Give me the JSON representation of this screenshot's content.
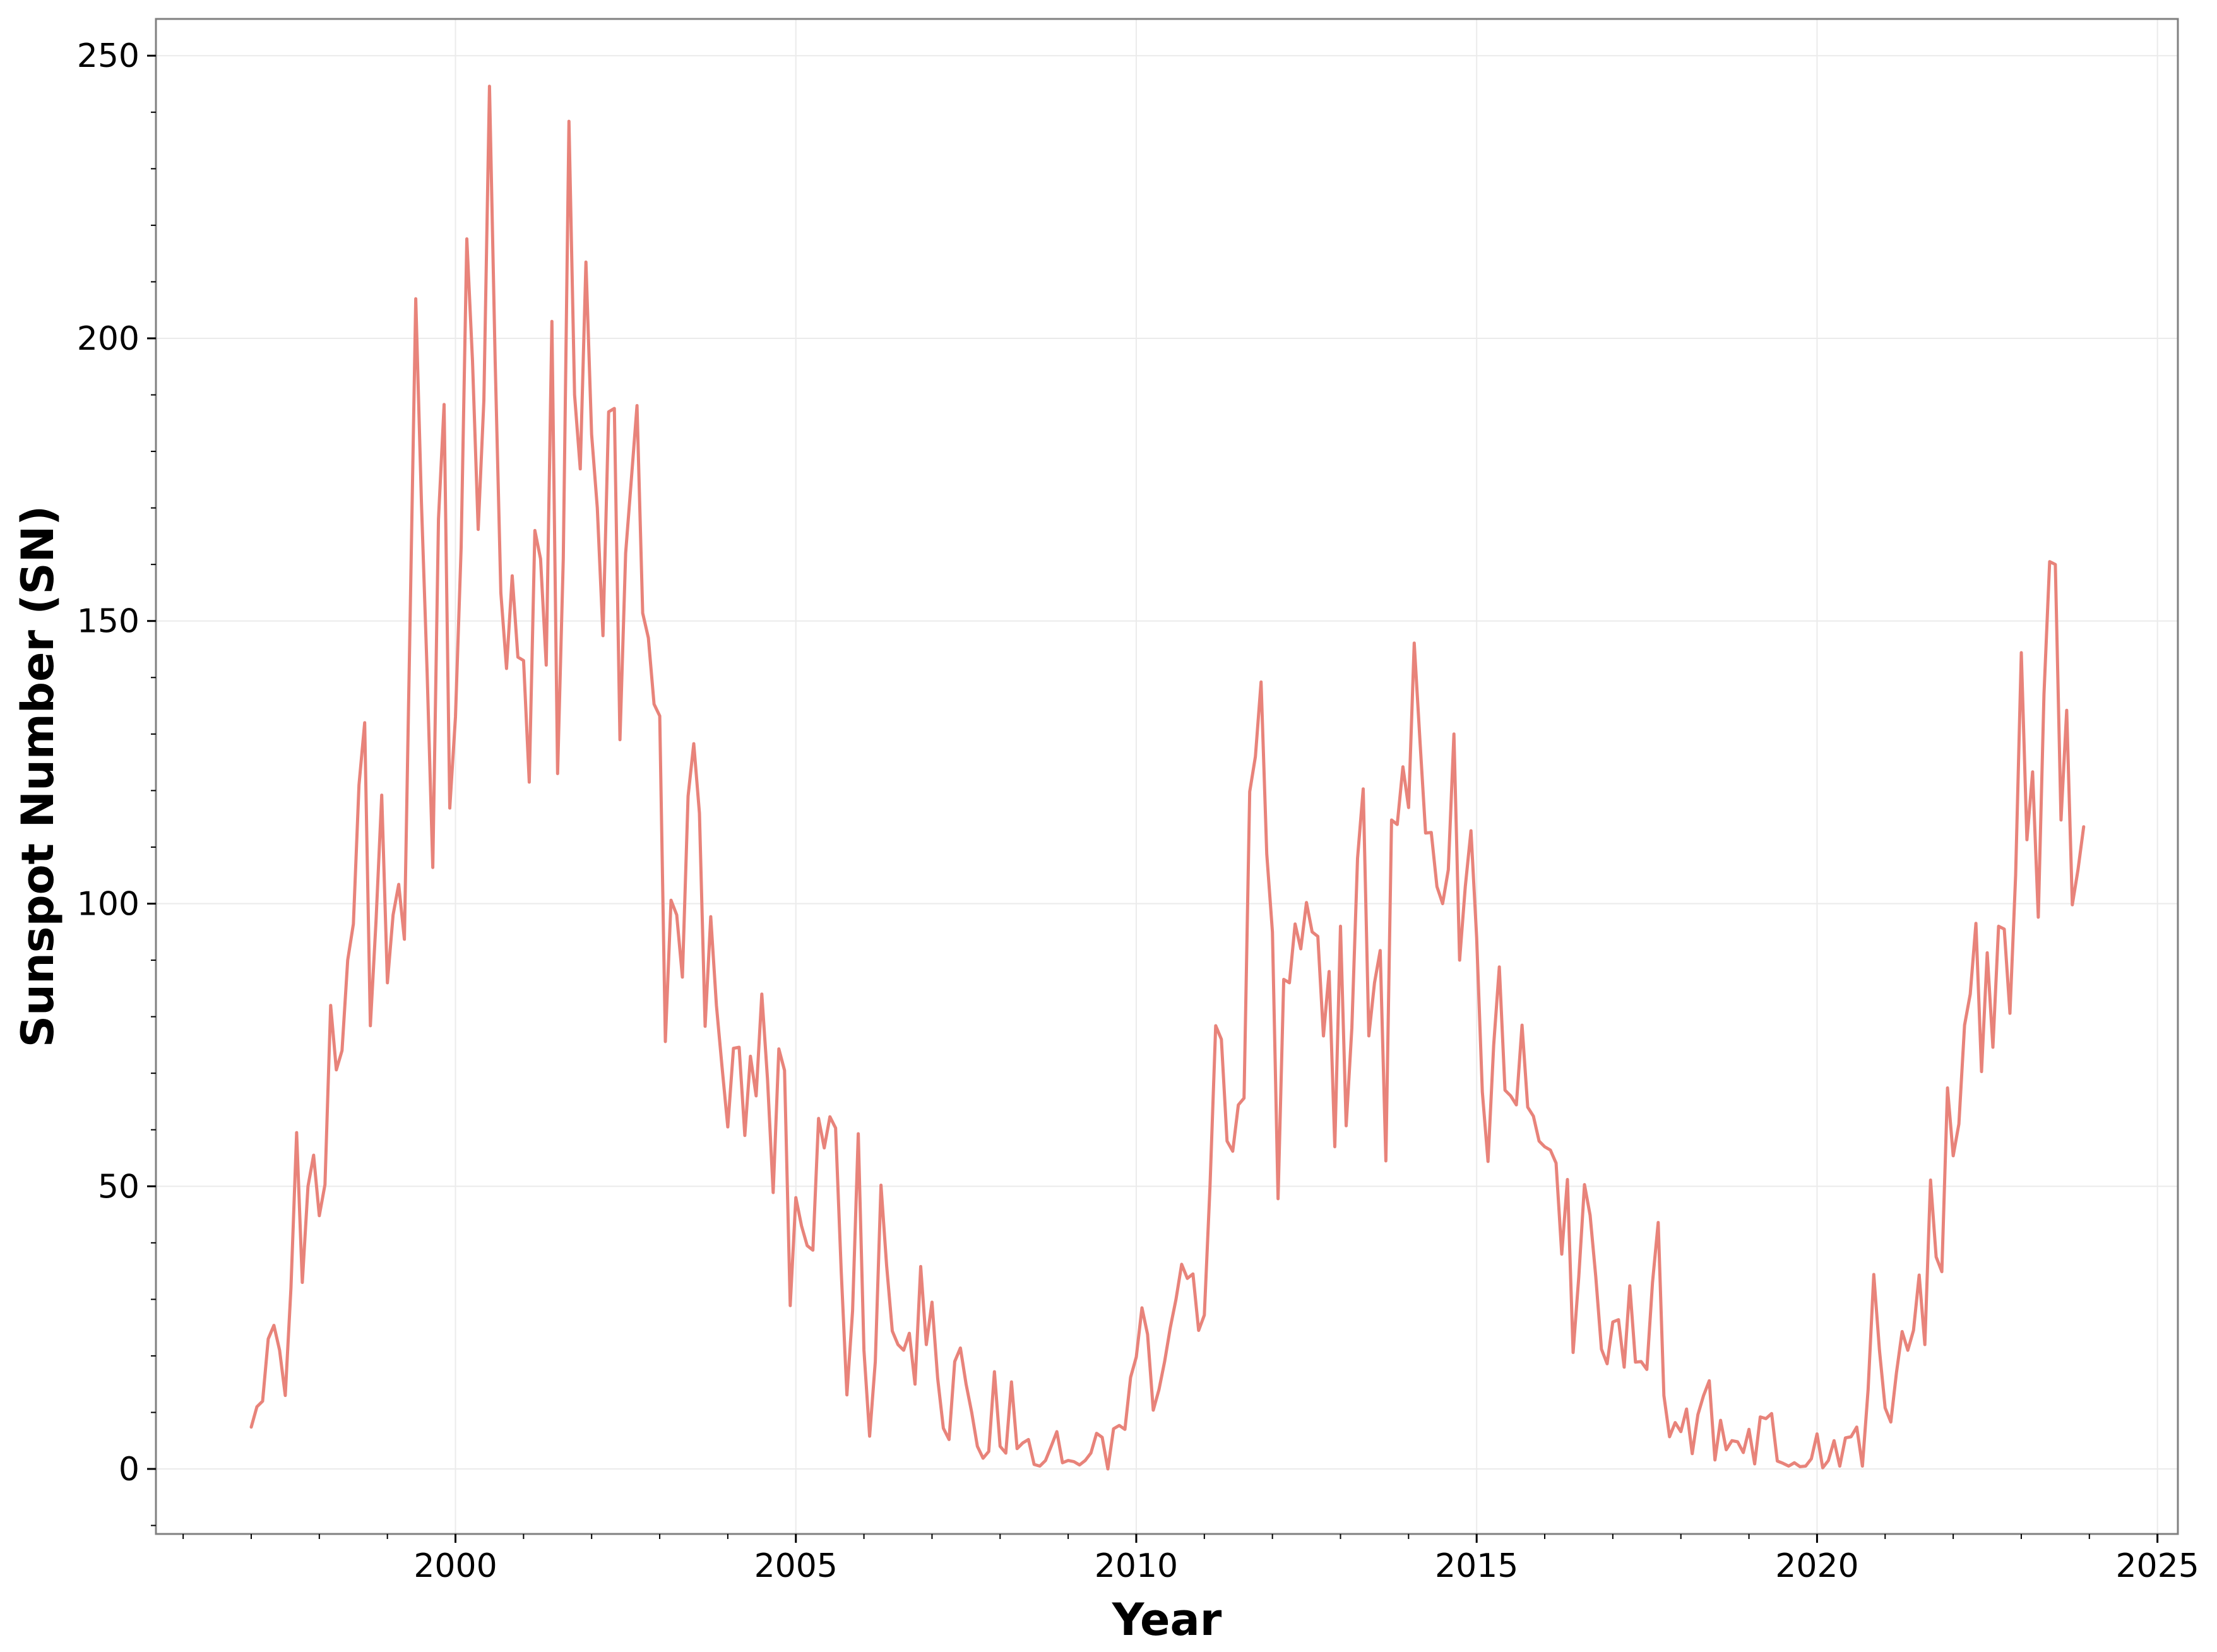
{
  "chart_data": {
    "type": "line",
    "title": "",
    "xlabel": "Year",
    "ylabel": "Sunspot Number (SN)",
    "xlim": [
      1995.6,
      2025.3
    ],
    "ylim": [
      -11.5,
      256.5
    ],
    "x_ticks": [
      2000,
      2005,
      2010,
      2015,
      2020,
      2025
    ],
    "x_tick_labels": [
      "2000",
      "2005",
      "2010",
      "2015",
      "2020",
      "2025"
    ],
    "y_ticks": [
      0,
      50,
      100,
      150,
      200,
      250
    ],
    "y_tick_labels": [
      "0",
      "50",
      "100",
      "150",
      "200",
      "250"
    ],
    "grid": true,
    "legend": "none",
    "line_color": "#e8837a",
    "series": [
      {
        "start_year": 1997,
        "step_months": 1,
        "values": [
          7.4,
          11.0,
          12.0,
          23.0,
          25.4,
          21.0,
          13.0,
          32.0,
          59.5,
          33.0,
          50.0,
          55.5,
          44.8,
          50.3,
          82.0,
          70.6,
          74.0,
          90.0,
          96.4,
          121.0,
          132.0,
          78.4,
          97.0,
          119.2,
          86.0,
          98.0,
          103.4,
          93.7,
          150.0,
          207.0,
          171.0,
          141.0,
          106.4,
          168.0,
          188.3,
          116.9,
          133.0,
          163.0,
          217.6,
          196.0,
          166.2,
          189.0,
          244.6,
          196.0,
          155.0,
          141.6,
          158.0,
          143.6,
          143.0,
          121.5,
          166.0,
          161.0,
          142.2,
          203.0,
          123.0,
          161.0,
          238.4,
          190.0,
          176.9,
          213.5,
          183.0,
          170.0,
          147.4,
          187.0,
          187.6,
          129.0,
          162.0,
          175.0,
          188.1,
          151.4,
          147.0,
          135.3,
          133.2,
          75.6,
          100.6,
          98.0,
          87.0,
          119.0,
          128.3,
          116.0,
          78.3,
          97.7,
          82.0,
          71.0,
          60.5,
          74.4,
          74.6,
          59.0,
          73.0,
          66.0,
          84.0,
          69.0,
          48.9,
          74.3,
          70.5,
          28.9,
          48.0,
          43.0,
          39.5,
          38.7,
          62.0,
          56.8,
          62.3,
          60.3,
          35.0,
          13.1,
          28.0,
          59.3,
          21.0,
          5.8,
          19.0,
          50.2,
          36.0,
          24.4,
          22.0,
          21.0,
          24.0,
          15.0,
          35.8,
          22.0,
          29.5,
          16.0,
          7.2,
          5.2,
          19.0,
          21.4,
          15.0,
          10.0,
          4.0,
          1.9,
          3.1,
          17.2,
          4.0,
          2.8,
          15.4,
          3.6,
          4.6,
          5.2,
          0.8,
          0.5,
          1.5,
          4.0,
          6.6,
          1.1,
          1.5,
          1.3,
          0.7,
          1.5,
          2.8,
          6.3,
          5.6,
          0.0,
          7.1,
          7.7,
          7.0,
          16.2,
          19.8,
          28.5,
          23.8,
          10.4,
          14.0,
          19.0,
          25.0,
          30.0,
          36.2,
          33.7,
          34.5,
          24.5,
          27.2,
          50.0,
          78.4,
          76.0,
          58.0,
          56.2,
          64.4,
          65.6,
          119.8,
          126.0,
          139.2,
          108.8,
          95.0,
          47.8,
          86.6,
          86.0,
          96.4,
          92.0,
          100.2,
          95.0,
          94.2,
          76.6,
          88.0,
          57.0,
          96.0,
          60.7,
          78.0,
          108.0,
          120.3,
          76.6,
          86.0,
          91.7,
          54.5,
          114.8,
          114.0,
          124.2,
          117.0,
          146.1,
          129.0,
          112.5,
          112.6,
          103.0,
          100.0,
          106.0,
          130.0,
          90.0,
          103.0,
          112.9,
          94.0,
          66.7,
          54.4,
          75.0,
          88.8,
          67.0,
          66.0,
          64.4,
          78.5,
          64.0,
          62.4,
          58.0,
          57.0,
          56.4,
          54.1,
          38.0,
          51.2,
          20.6,
          34.0,
          50.3,
          44.9,
          34.0,
          21.2,
          18.6,
          26.0,
          26.4,
          18.0,
          32.4,
          18.9,
          19.0,
          17.6,
          33.0,
          43.6,
          13.0,
          5.7,
          8.2,
          6.6,
          10.6,
          2.7,
          9.6,
          13.0,
          15.6,
          1.6,
          8.6,
          3.4,
          5.0,
          4.8,
          2.9,
          7.0,
          0.9,
          9.2,
          8.9,
          9.8,
          1.4,
          1.0,
          0.5,
          1.1,
          0.4,
          0.5,
          1.8,
          6.2,
          0.2,
          1.5,
          5.0,
          0.5,
          5.5,
          5.7,
          7.4,
          0.5,
          14.0,
          34.4,
          21.0,
          10.8,
          8.3,
          17.0,
          24.3,
          21.0,
          24.5,
          34.3,
          22.0,
          51.1,
          37.5,
          34.9,
          67.4,
          55.4,
          61.0,
          78.5,
          84.0,
          96.5,
          70.3,
          91.3,
          74.6,
          96.0,
          95.5,
          80.6,
          105.0,
          144.4,
          111.3,
          123.3,
          97.6,
          137.0,
          160.5,
          160.0,
          114.8,
          134.2,
          99.8,
          106.0,
          113.6
        ]
      }
    ]
  }
}
